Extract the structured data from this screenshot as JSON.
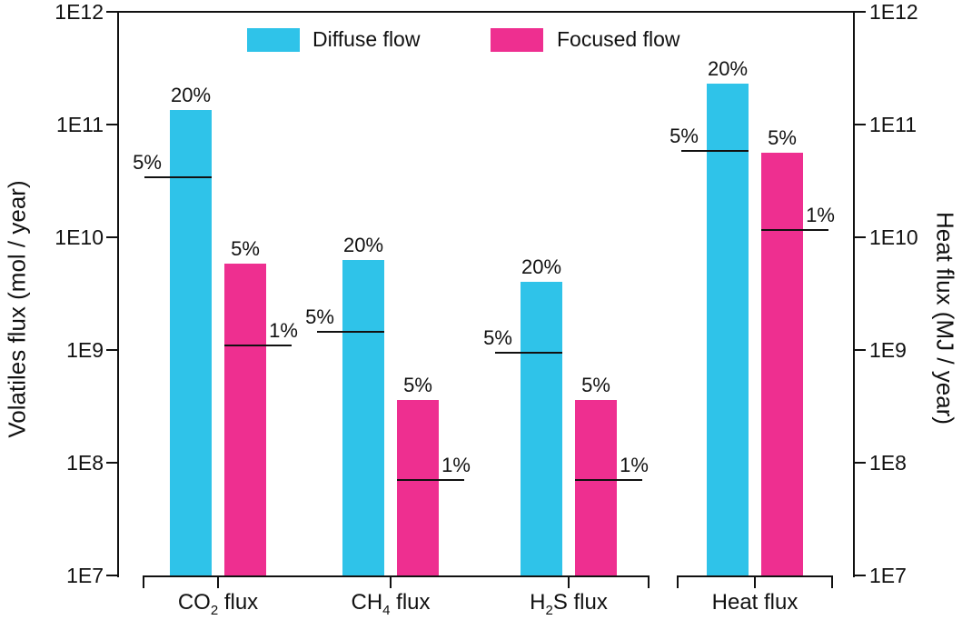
{
  "chart_data": {
    "type": "bar",
    "scale": "log",
    "title": "",
    "left_axis_label": "Volatiles flux (mol / year)",
    "right_axis_label": "Heat flux (MJ / year)",
    "ylim": [
      10000000.0,
      1000000000000.0
    ],
    "y_ticks": [
      {
        "label": "1E12",
        "value": 1000000000000.0
      },
      {
        "label": "1E11",
        "value": 100000000000.0
      },
      {
        "label": "1E10",
        "value": 10000000000.0
      },
      {
        "label": "1E9",
        "value": 1000000000.0
      },
      {
        "label": "1E8",
        "value": 100000000.0
      },
      {
        "label": "1E7",
        "value": 10000000.0
      }
    ],
    "legend": [
      {
        "label": "Diffuse flow",
        "color": "#2fc3e9"
      },
      {
        "label": "Focused flow",
        "color": "#ee2f90"
      }
    ],
    "axis_color": "#111111",
    "categories": [
      "CO2 flux",
      "CH4 flux",
      "H2S flux",
      "Heat flux"
    ],
    "groups": [
      {
        "category": {
          "pre": "CO",
          "sub": "2",
          "post": " flux"
        },
        "unit": "mol / year",
        "diffuse": {
          "value": 135000000000.0,
          "value_label": "20%",
          "marker_value": 34000000000.0,
          "marker_label": "5%"
        },
        "focused": {
          "value": 5800000000.0,
          "value_label": "5%",
          "marker_value": 1100000000.0,
          "marker_label": "1%"
        }
      },
      {
        "category": {
          "pre": "CH",
          "sub": "4",
          "post": " flux"
        },
        "unit": "mol / year",
        "diffuse": {
          "value": 6300000000.0,
          "value_label": "20%",
          "marker_value": 1450000000.0,
          "marker_label": "5%"
        },
        "focused": {
          "value": 360000000.0,
          "value_label": "5%",
          "marker_value": 70000000.0,
          "marker_label": "1%"
        }
      },
      {
        "category": {
          "pre": "H",
          "sub": "2",
          "post": "S flux"
        },
        "unit": "mol / year",
        "diffuse": {
          "value": 4000000000.0,
          "value_label": "20%",
          "marker_value": 950000000.0,
          "marker_label": "5%"
        },
        "focused": {
          "value": 360000000.0,
          "value_label": "5%",
          "marker_value": 70000000.0,
          "marker_label": "1%"
        }
      },
      {
        "category": {
          "pre": "Heat",
          "sub": "",
          "post": " flux"
        },
        "unit": "MJ / year",
        "diffuse": {
          "value": 230000000000.0,
          "value_label": "20%",
          "marker_value": 58000000000.0,
          "marker_label": "5%"
        },
        "focused": {
          "value": 56000000000.0,
          "value_label": "5%",
          "marker_value": 11500000000.0,
          "marker_label": "1%"
        }
      }
    ]
  }
}
